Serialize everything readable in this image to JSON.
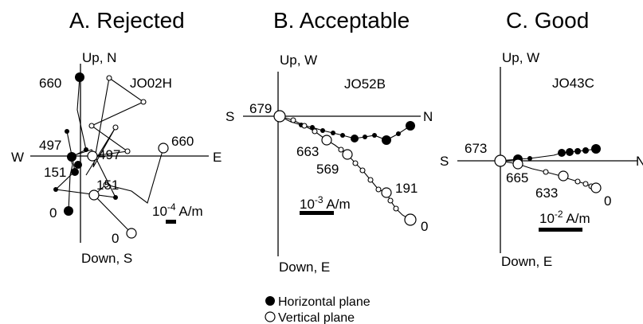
{
  "panels": [
    {
      "title": "A. Rejected",
      "specimen": "JO02H",
      "axis_up": "Up, N",
      "axis_down": "Down, S",
      "axis_left": "W",
      "axis_right": "E",
      "scale_label": "10",
      "scale_exp": "-4",
      "scale_unit": " A/m",
      "step_labels": [
        "660",
        "497",
        "151",
        "0",
        "497",
        "151",
        "660",
        "0"
      ]
    },
    {
      "title": "B. Acceptable",
      "specimen": "JO52B",
      "axis_up": "Up, W",
      "axis_down": "Down, E",
      "axis_left": "S",
      "axis_right": "N",
      "scale_label": "10",
      "scale_exp": "-3",
      "scale_unit": " A/m",
      "step_labels": [
        "679",
        "663",
        "569",
        "191",
        "0"
      ]
    },
    {
      "title": "C. Good",
      "specimen": "JO43C",
      "axis_up": "Up, W",
      "axis_down": "Down, E",
      "axis_left": "S",
      "axis_right": "N",
      "scale_label": "10",
      "scale_exp": "-2",
      "scale_unit": " A/m",
      "step_labels": [
        "673",
        "665",
        "633",
        "0"
      ]
    }
  ],
  "legend": {
    "horizontal": "Horizontal plane",
    "vertical": "Vertical plane"
  }
}
